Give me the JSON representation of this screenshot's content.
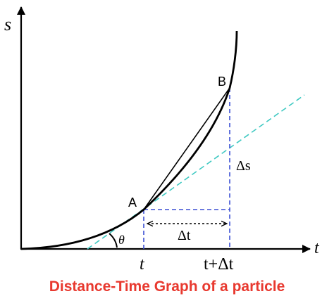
{
  "labels": {
    "y_axis": "s",
    "x_axis": "t",
    "point_a": "A",
    "point_b": "B",
    "angle": "θ",
    "delta_s": "Δs",
    "delta_t": "Δt",
    "tick_t": "t",
    "tick_t_plus_dt": "t+Δt"
  },
  "caption": "Distance-Time Graph of a particle",
  "colors": {
    "axes": "#000000",
    "curve": "#000000",
    "tangent": "#3fc9c2",
    "guides": "#3b4fd4",
    "caption": "#e8392f"
  }
}
